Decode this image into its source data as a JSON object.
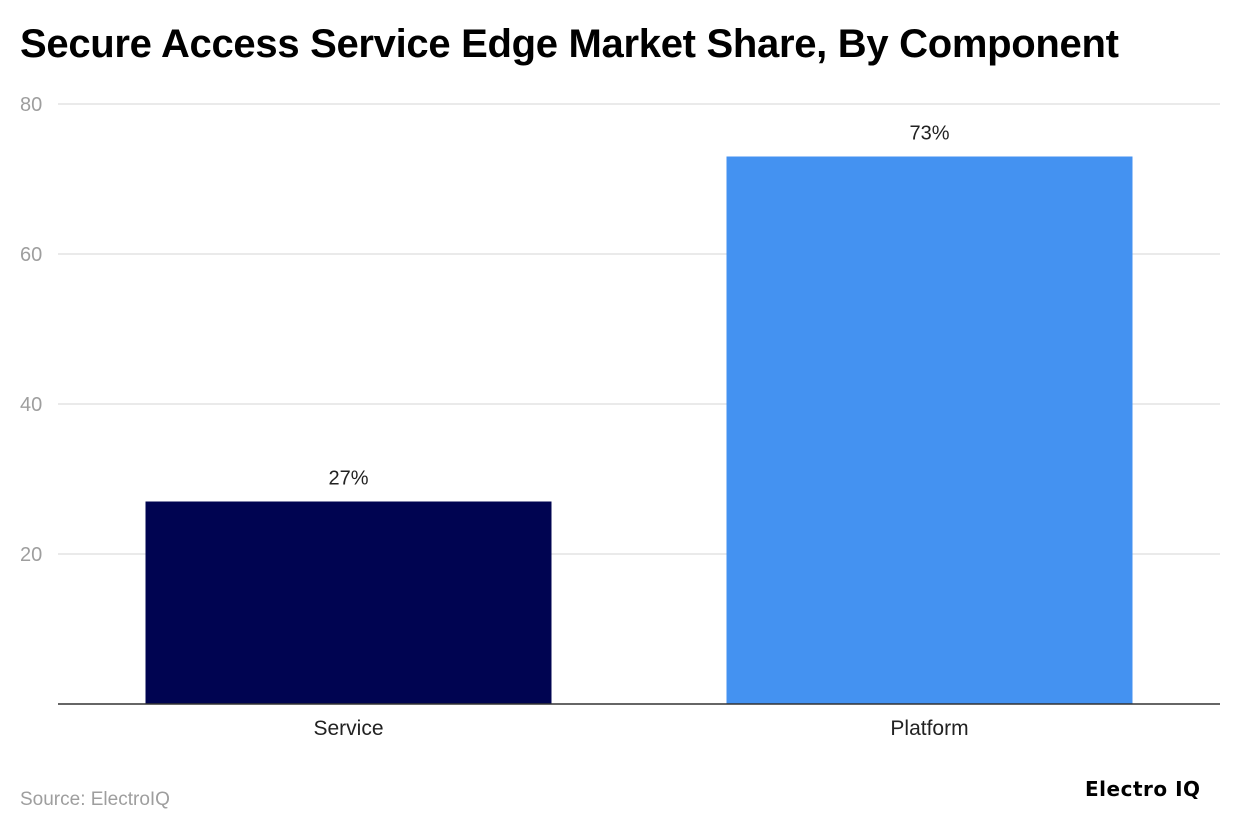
{
  "chart_data": {
    "type": "bar",
    "title": "Secure Access Service Edge Market Share, By Component",
    "categories": [
      "Service",
      "Platform"
    ],
    "values": [
      27,
      73
    ],
    "data_labels": [
      "27%",
      "73%"
    ],
    "xlabel": "",
    "ylabel": "",
    "ylim": [
      0,
      80
    ],
    "yticks": [
      20,
      40,
      60,
      80
    ],
    "grid": true,
    "colors": [
      "#000451",
      "#4492f1"
    ]
  },
  "footer": {
    "source": "Source: ElectroIQ",
    "logo": "Electro IQ"
  }
}
